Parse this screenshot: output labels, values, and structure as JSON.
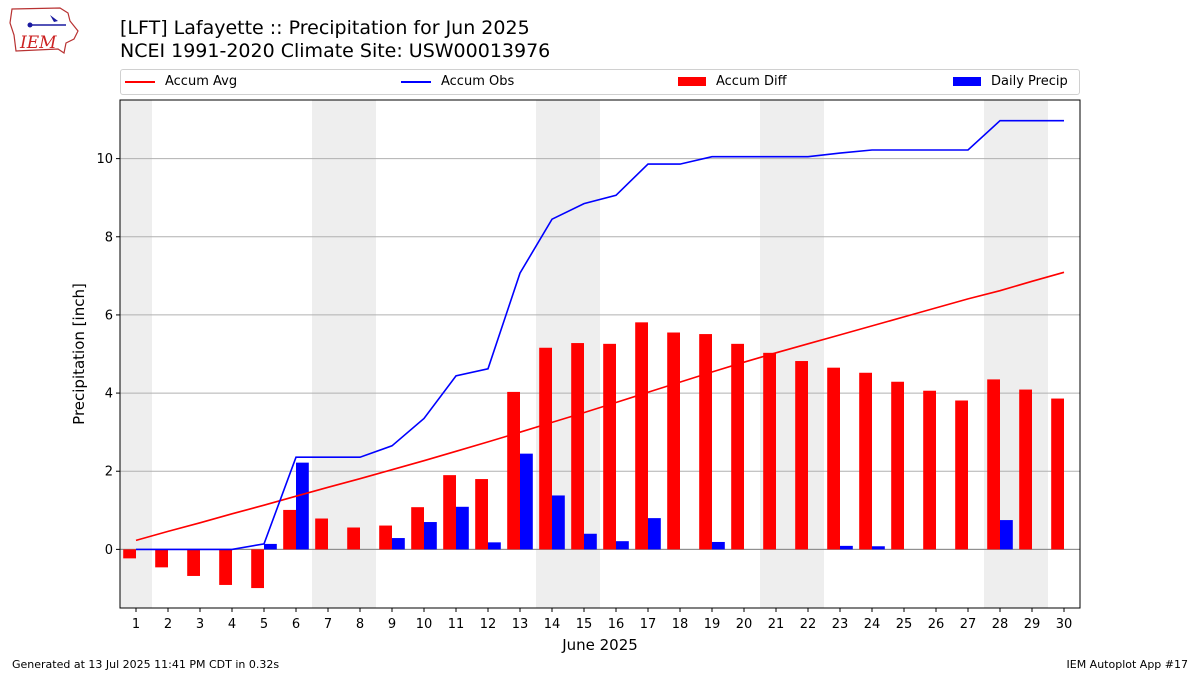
{
  "header": {
    "title_line1": "[LFT] Lafayette :: Precipitation for Jun 2025",
    "title_line2": "NCEI 1991-2020 Climate Site: USW00013976",
    "logo_text": "IEM"
  },
  "footer": {
    "left": "Generated at 13 Jul 2025 11:41 PM CDT in 0.32s",
    "right": "IEM Autoplot App #17"
  },
  "legend": [
    {
      "label": "Accum Avg",
      "color": "#ff0000",
      "kind": "line"
    },
    {
      "label": "Accum Obs",
      "color": "#0000ff",
      "kind": "line"
    },
    {
      "label": "Accum Diff",
      "color": "#ff0000",
      "kind": "bar"
    },
    {
      "label": "Daily Precip",
      "color": "#0000ff",
      "kind": "bar"
    }
  ],
  "chart_data": {
    "type": "bar",
    "xlabel": "June 2025",
    "ylabel": "Precipitation [inch]",
    "xlim": [
      0.5,
      30.5
    ],
    "ylim": [
      -1.5,
      11.5
    ],
    "yticks": [
      0,
      2,
      4,
      6,
      8,
      10
    ],
    "grid": "horizontal",
    "legend_position": "top",
    "weekend_shading": [
      [
        0.5,
        1.5
      ],
      [
        6.5,
        8.5
      ],
      [
        13.5,
        15.5
      ],
      [
        20.5,
        22.5
      ],
      [
        27.5,
        29.5
      ]
    ],
    "days": [
      1,
      2,
      3,
      4,
      5,
      6,
      7,
      8,
      9,
      10,
      11,
      12,
      13,
      14,
      15,
      16,
      17,
      18,
      19,
      20,
      21,
      22,
      23,
      24,
      25,
      26,
      27,
      28,
      29,
      30
    ],
    "series": [
      {
        "name": "Accum Avg",
        "type": "line",
        "color": "#ff0000",
        "values": [
          0.23,
          0.46,
          0.68,
          0.91,
          1.13,
          1.36,
          1.59,
          1.81,
          2.04,
          2.27,
          2.51,
          2.75,
          3.0,
          3.25,
          3.5,
          3.76,
          4.02,
          4.28,
          4.54,
          4.79,
          5.03,
          5.26,
          5.49,
          5.72,
          5.95,
          6.18,
          6.41,
          6.62,
          6.86,
          7.09
        ]
      },
      {
        "name": "Accum Obs",
        "type": "line",
        "color": "#0000ff",
        "values": [
          0.0,
          0.0,
          0.0,
          0.0,
          0.14,
          2.36,
          2.36,
          2.36,
          2.65,
          3.35,
          4.44,
          4.62,
          7.07,
          8.45,
          8.85,
          9.06,
          9.86,
          9.86,
          10.05,
          10.05,
          10.05,
          10.05,
          10.14,
          10.22,
          10.22,
          10.22,
          10.22,
          10.97,
          10.97,
          10.97
        ]
      },
      {
        "name": "Accum Diff",
        "type": "bar",
        "color": "#ff0000",
        "values": [
          -0.23,
          -0.46,
          -0.68,
          -0.91,
          -0.99,
          1.01,
          0.79,
          0.56,
          0.61,
          1.08,
          1.9,
          1.8,
          4.03,
          5.16,
          5.28,
          5.26,
          5.81,
          5.55,
          5.51,
          5.26,
          5.03,
          4.82,
          4.65,
          4.52,
          4.29,
          4.06,
          3.81,
          4.35,
          4.09,
          3.86
        ]
      },
      {
        "name": "Daily Precip",
        "type": "bar",
        "color": "#0000ff",
        "values": [
          0,
          0,
          0,
          0,
          0.14,
          2.22,
          0,
          0,
          0.29,
          0.7,
          1.09,
          0.18,
          2.45,
          1.38,
          0.4,
          0.21,
          0.8,
          0,
          0.19,
          0,
          0,
          0,
          0.09,
          0.08,
          0,
          0,
          0,
          0.75,
          0,
          0
        ]
      }
    ]
  }
}
